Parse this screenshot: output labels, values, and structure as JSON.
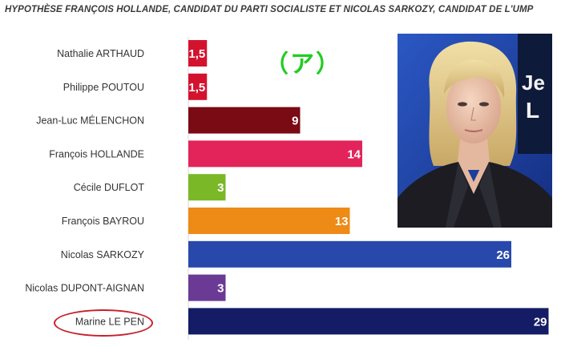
{
  "page": {
    "title": "HYPOTHÈSE FRANÇOIS HOLLANDE, CANDIDAT DU PARTI SOCIALISTE ET NICOLAS SARKOZY, CANDIDAT DE L'UMP",
    "annotation": "（ア）",
    "photo": {
      "backdrop_text": "Je",
      "backdrop_letter": "L"
    }
  },
  "chart_data": {
    "type": "bar",
    "orientation": "horizontal",
    "title": "HYPOTHÈSE FRANÇOIS HOLLANDE, CANDIDAT DU PARTI SOCIALISTE ET NICOLAS SARKOZY, CANDIDAT DE L'UMP",
    "categories": [
      "Nathalie ARTHAUD",
      "Philippe POUTOU",
      "Jean-Luc MÉLENCHON",
      "François HOLLANDE",
      "Cécile DUFLOT",
      "François BAYROU",
      "Nicolas SARKOZY",
      "Nicolas DUPONT-AIGNAN",
      "Marine LE PEN"
    ],
    "values": [
      1.5,
      1.5,
      9,
      14,
      3,
      13,
      26,
      3,
      29
    ],
    "value_labels": [
      "1,5",
      "1,5",
      "9",
      "14",
      "3",
      "13",
      "26",
      "3",
      "29"
    ],
    "colors": [
      "#d3132e",
      "#d3132e",
      "#7a0a14",
      "#e2245a",
      "#7ab828",
      "#ee8a16",
      "#2849ab",
      "#6a3a94",
      "#141c66"
    ],
    "highlighted": "Marine LE PEN",
    "highlight_color": "#c8202a",
    "xlim": [
      0,
      30
    ],
    "grid": false,
    "legend": "none"
  }
}
